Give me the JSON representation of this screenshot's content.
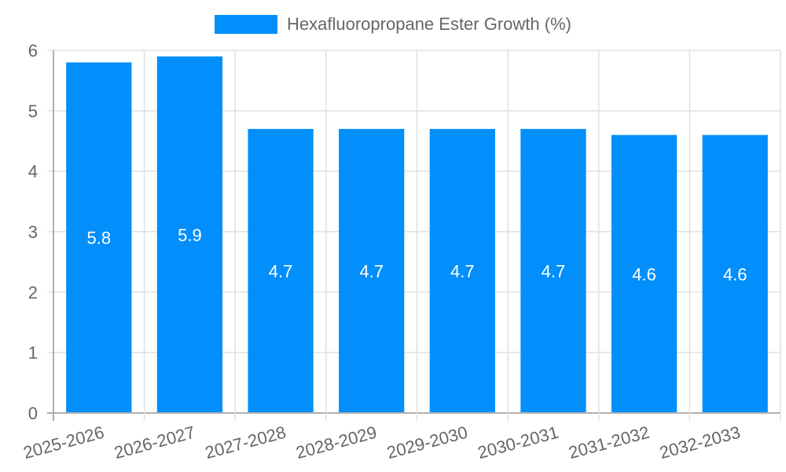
{
  "chart_data": {
    "type": "bar",
    "title": "",
    "categories": [
      "2025-2026",
      "2026-2027",
      "2027-2028",
      "2028-2029",
      "2029-2030",
      "2030-2031",
      "2031-2032",
      "2032-2033"
    ],
    "series": [
      {
        "name": "Hexafluoropropane Ester Growth (%)",
        "values": [
          5.8,
          5.9,
          4.7,
          4.7,
          4.7,
          4.7,
          4.6,
          4.6
        ],
        "color": "#038ffb"
      }
    ],
    "data_labels": [
      "5.8",
      "5.9",
      "4.7",
      "4.7",
      "4.7",
      "4.7",
      "4.6",
      "4.6"
    ],
    "xlabel": "",
    "ylabel": "",
    "ylim": [
      0,
      6
    ],
    "yticks": [
      0,
      1,
      2,
      3,
      4,
      5,
      6
    ],
    "grid": true,
    "legend_position": "top"
  },
  "legend": {
    "label": "Hexafluoropropane Ester Growth (%)",
    "color": "#038ffb"
  }
}
